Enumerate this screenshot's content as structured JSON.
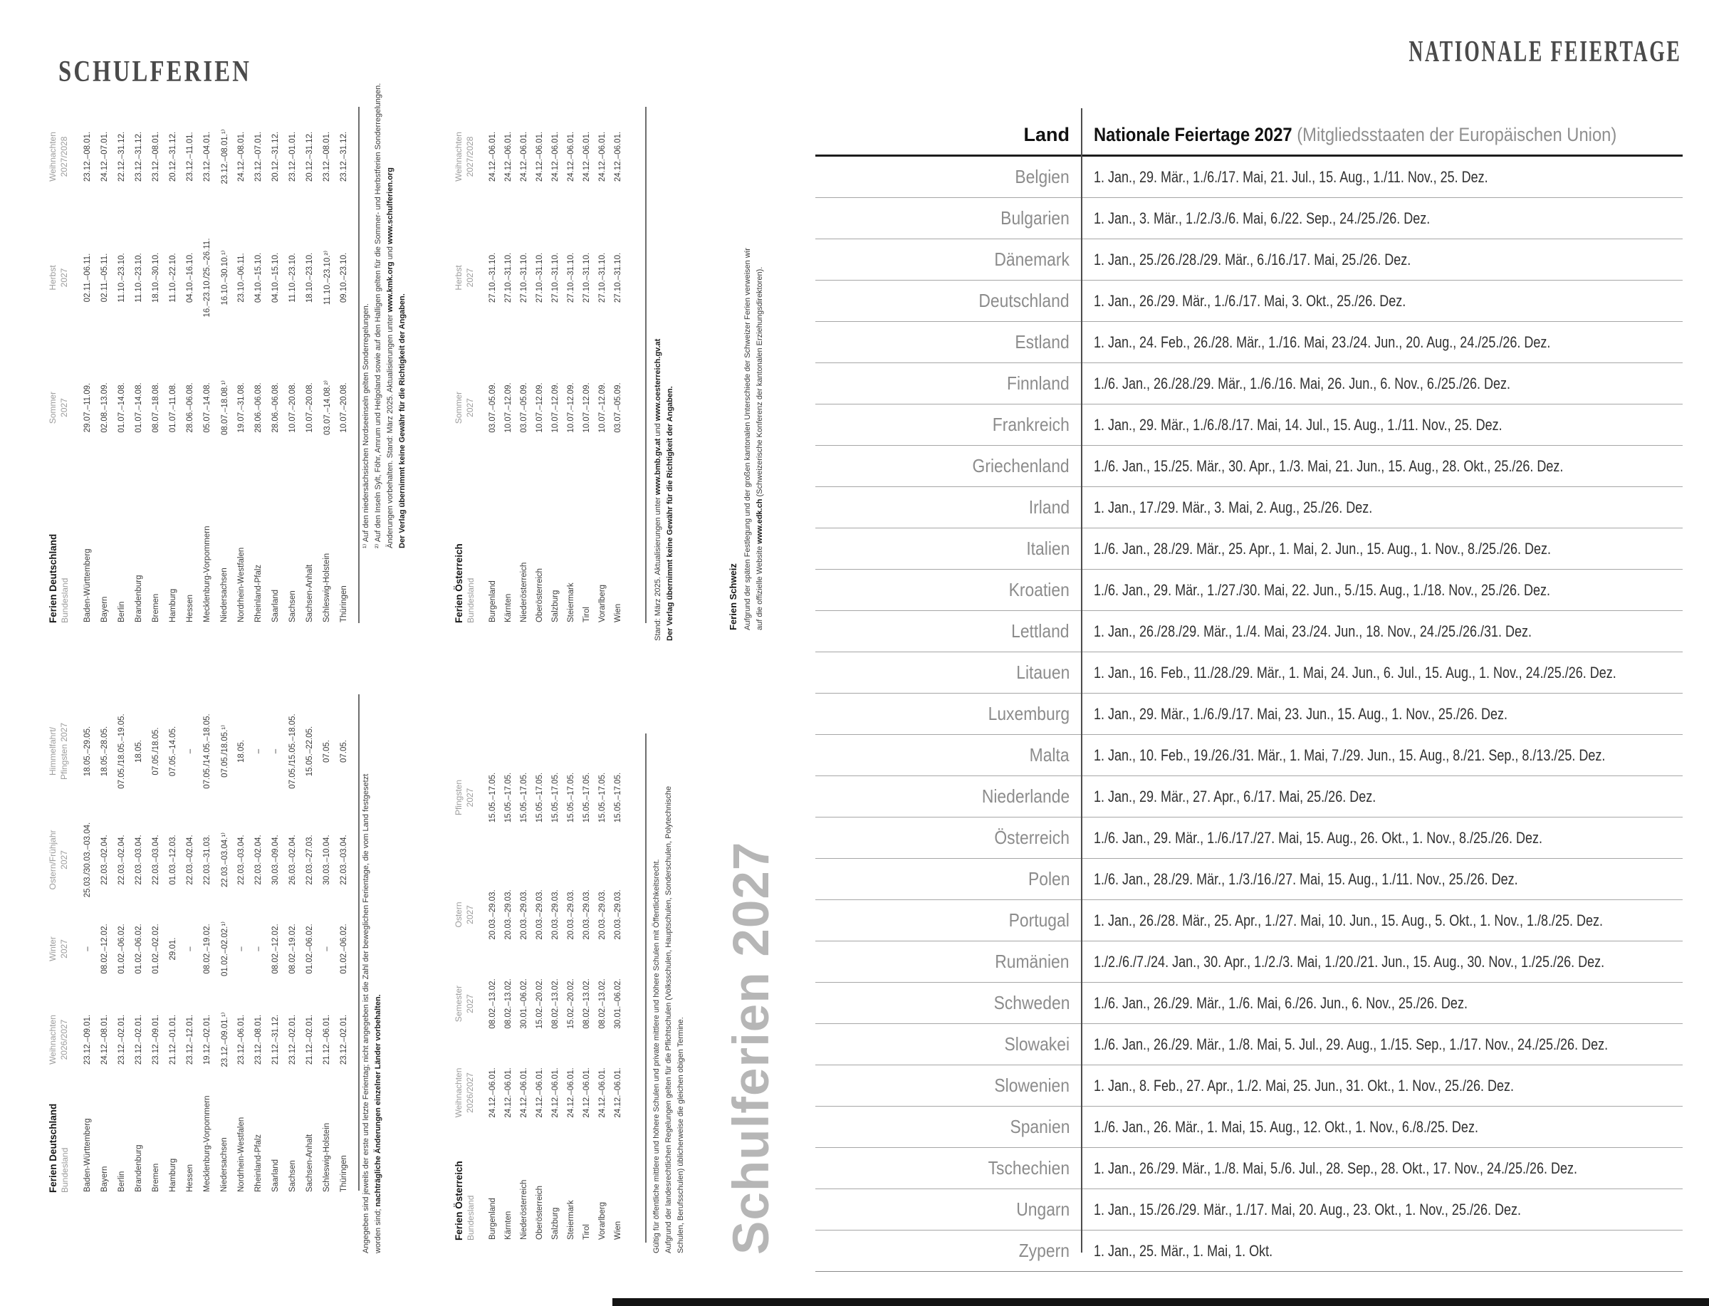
{
  "left_page": {
    "title": "SCHULFERIEN",
    "watermark": "Schulferien 2027",
    "tables": {
      "de_top": {
        "title": "Ferien Deutschland",
        "subtitle": "Bundesland",
        "columns": [
          [
            "Sommer",
            "2027"
          ],
          [
            "Herbst",
            "2027"
          ],
          [
            "Weihnachten",
            "2027/2028"
          ]
        ],
        "rows": [
          [
            "Baden-Württemberg",
            "29.07.–11.09.",
            "02.11.–06.11.",
            "23.12.–08.01."
          ],
          [
            "Bayern",
            "02.08.–13.09.",
            "02.11.–05.11.",
            "24.12.–07.01."
          ],
          [
            "Berlin",
            "01.07.–14.08.",
            "11.10.–23.10.",
            "22.12.–31.12."
          ],
          [
            "Brandenburg",
            "01.07.–14.08.",
            "11.10.–23.10.",
            "23.12.–31.12."
          ],
          [
            "Bremen",
            "08.07.–18.08.",
            "18.10.–30.10.",
            "23.12.–08.01."
          ],
          [
            "Hamburg",
            "01.07.–11.08.",
            "11.10.–22.10.",
            "20.12.–31.12."
          ],
          [
            "Hessen",
            "28.06.–06.08.",
            "04.10.–16.10.",
            "23.12.–11.01."
          ],
          [
            "Mecklenburg-Vorpommern",
            "05.07.–14.08.",
            "16.–23.10./25.–26.11.",
            "23.12.–04.01."
          ],
          [
            "Niedersachsen",
            "08.07.–18.08.¹⁾",
            "16.10.–30.10.¹⁾",
            "23.12.–08.01.¹⁾"
          ],
          [
            "Nordrhein-Westfalen",
            "19.07.–31.08.",
            "23.10.–06.11.",
            "24.12.–08.01."
          ],
          [
            "Rheinland-Pfalz",
            "28.06.–06.08.",
            "04.10.–15.10.",
            "23.12.–07.01."
          ],
          [
            "Saarland",
            "28.06.–06.08.",
            "04.10.–15.10.",
            "20.12.–31.12."
          ],
          [
            "Sachsen",
            "10.07.–20.08.",
            "11.10.–23.10.",
            "23.12.–01.01."
          ],
          [
            "Sachsen-Anhalt",
            "10.07.–20.08.",
            "18.10.–23.10.",
            "20.12.–31.12."
          ],
          [
            "Schleswig-Holstein",
            "03.07.–14.08.²⁾",
            "11.10.–23.10.²⁾",
            "23.12.–08.01."
          ],
          [
            "Thüringen",
            "10.07.–20.08.",
            "09.10.–23.10.",
            "23.12.–31.12."
          ]
        ]
      },
      "de_bottom": {
        "title": "Ferien Deutschland",
        "subtitle": "Bundesland",
        "columns": [
          [
            "Weihnachten",
            "2026/2027"
          ],
          [
            "Winter",
            "2027"
          ],
          [
            "Ostern/Frühjahr",
            "2027"
          ],
          [
            "Himmelfahrt/",
            "Pfingsten 2027"
          ]
        ],
        "rows": [
          [
            "Baden-Württemberg",
            "23.12.–09.01.",
            "–",
            "25.03./30.03.–03.04.",
            "18.05.–29.05."
          ],
          [
            "Bayern",
            "24.12.–08.01.",
            "08.02.–12.02.",
            "22.03.–02.04.",
            "18.05.–28.05."
          ],
          [
            "Berlin",
            "23.12.–02.01.",
            "01.02.–06.02.",
            "22.03.–02.04.",
            "07.05./18.05.–19.05."
          ],
          [
            "Brandenburg",
            "23.12.–02.01.",
            "01.02.–06.02.",
            "22.03.–03.04.",
            "18.05."
          ],
          [
            "Bremen",
            "23.12.–09.01.",
            "01.02.–02.02.",
            "22.03.–03.04.",
            "07.05./18.05."
          ],
          [
            "Hamburg",
            "21.12.–01.01.",
            "29.01.",
            "01.03.–12.03.",
            "07.05.–14.05."
          ],
          [
            "Hessen",
            "23.12.–12.01.",
            "–",
            "22.03.–02.04.",
            "–"
          ],
          [
            "Mecklenburg-Vorpommern",
            "19.12.–02.01.",
            "08.02.–19.02.",
            "22.03.–31.03.",
            "07.05./14.05.–18.05."
          ],
          [
            "Niedersachsen",
            "23.12.–09.01.¹⁾",
            "01.02.–02.02.¹⁾",
            "22.03.–03.04.¹⁾",
            "07.05./18.05.¹⁾"
          ],
          [
            "Nordrhein-Westfalen",
            "23.12.–06.01.",
            "–",
            "22.03.–03.04.",
            "18.05."
          ],
          [
            "Rheinland-Pfalz",
            "23.12.–08.01.",
            "–",
            "22.03.–02.04.",
            "–"
          ],
          [
            "Saarland",
            "21.12.–31.12.",
            "08.02.–12.02.",
            "30.03.–09.04.",
            "–"
          ],
          [
            "Sachsen",
            "23.12.–02.01.",
            "08.02.–19.02.",
            "26.03.–02.04.",
            "07.05./15.05.–18.05."
          ],
          [
            "Sachsen-Anhalt",
            "21.12.–02.01.",
            "01.02.–06.02.",
            "22.03.–27.03.",
            "15.05.–22.05."
          ],
          [
            "Schleswig-Holstein",
            "21.12.–06.01.",
            "–",
            "30.03.–10.04.",
            "07.05."
          ],
          [
            "Thüringen",
            "23.12.–02.01.",
            "01.02.–06.02.",
            "22.03.–03.04.",
            "07.05."
          ]
        ]
      },
      "at_top": {
        "title": "Ferien Österreich",
        "subtitle": "Bundesland",
        "columns": [
          [
            "Sommer",
            "2027"
          ],
          [
            "Herbst",
            "2027"
          ],
          [
            "Weihnachten",
            "2027/2028"
          ]
        ],
        "rows": [
          [
            "Burgenland",
            "03.07.–05.09.",
            "27.10.–31.10.",
            "24.12.–06.01."
          ],
          [
            "Kärnten",
            "10.07.–12.09.",
            "27.10.–31.10.",
            "24.12.–06.01."
          ],
          [
            "Niederösterreich",
            "03.07.–05.09.",
            "27.10.–31.10.",
            "24.12.–06.01."
          ],
          [
            "Oberösterreich",
            "10.07.–12.09.",
            "27.10.–31.10.",
            "24.12.–06.01."
          ],
          [
            "Salzburg",
            "10.07.–12.09.",
            "27.10.–31.10.",
            "24.12.–06.01."
          ],
          [
            "Steiermark",
            "10.07.–12.09.",
            "27.10.–31.10.",
            "24.12.–06.01."
          ],
          [
            "Tirol",
            "10.07.–12.09.",
            "27.10.–31.10.",
            "24.12.–06.01."
          ],
          [
            "Vorarlberg",
            "10.07.–12.09.",
            "27.10.–31.10.",
            "24.12.–06.01."
          ],
          [
            "Wien",
            "03.07.–05.09.",
            "27.10.–31.10.",
            "24.12.–06.01."
          ]
        ]
      },
      "at_bottom": {
        "title": "Ferien Österreich",
        "subtitle": "Bundesland",
        "columns": [
          [
            "Weihnachten",
            "2026/2027"
          ],
          [
            "Semester",
            "2027"
          ],
          [
            "Ostern",
            "2027"
          ],
          [
            "Pfingsten",
            "2027"
          ]
        ],
        "rows": [
          [
            "Burgenland",
            "24.12.–06.01.",
            "08.02.–13.02.",
            "20.03.–29.03.",
            "15.05.–17.05."
          ],
          [
            "Kärnten",
            "24.12.–06.01.",
            "08.02.–13.02.",
            "20.03.–29.03.",
            "15.05.–17.05."
          ],
          [
            "Niederösterreich",
            "24.12.–06.01.",
            "30.01.–06.02.",
            "20.03.–29.03.",
            "15.05.–17.05."
          ],
          [
            "Oberösterreich",
            "24.12.–06.01.",
            "15.02.–20.02.",
            "20.03.–29.03.",
            "15.05.–17.05."
          ],
          [
            "Salzburg",
            "24.12.–06.01.",
            "08.02.–13.02.",
            "20.03.–29.03.",
            "15.05.–17.05."
          ],
          [
            "Steiermark",
            "24.12.–06.01.",
            "15.02.–20.02.",
            "20.03.–29.03.",
            "15.05.–17.05."
          ],
          [
            "Tirol",
            "24.12.–06.01.",
            "08.02.–13.02.",
            "20.03.–29.03.",
            "15.05.–17.05."
          ],
          [
            "Vorarlberg",
            "24.12.–06.01.",
            "08.02.–13.02.",
            "20.03.–29.03.",
            "15.05.–17.05."
          ],
          [
            "Wien",
            "24.12.–06.01.",
            "30.01.–06.02.",
            "20.03.–29.03.",
            "15.05.–17.05."
          ]
        ]
      }
    },
    "footnotes": {
      "de_top": [
        [
          {
            "t": "¹⁾ Auf den niedersächsischen Nordseeinseln gelten Sonderregelungen.",
            "b": 0
          }
        ],
        [
          {
            "t": "²⁾ Auf den Inseln Sylt, Föhr, Amrum und Helgoland sowie auf den Halligen gelten für die Sommer- und Herbstferien Sonderregelungen.",
            "b": 0
          }
        ],
        [
          {
            "t": "Änderungen vorbehalten. Stand: März 2025. Aktualisierungen unter ",
            "b": 0
          },
          {
            "t": "www.kmk.org",
            "b": 1
          },
          {
            "t": " und ",
            "b": 0
          },
          {
            "t": "www.schulferien.org",
            "b": 1
          }
        ],
        [
          {
            "t": "Der Verlag übernimmt keine Gewähr für die Richtigkeit der Angaben.",
            "b": 1
          }
        ]
      ],
      "de_bottom": [
        [
          {
            "t": "Angegeben sind jeweils der erste und letzte Ferientag; nicht angegeben ist die Zahl der beweglichen Ferientage, die vom Land festgesetzt",
            "b": 0
          }
        ],
        [
          {
            "t": "worden sind; ",
            "b": 0
          },
          {
            "t": "nachträgliche Änderungen einzelner Länder vorbehalten.",
            "b": 1
          }
        ]
      ],
      "at_top": [
        [
          {
            "t": "Stand: März 2025. Aktualisierungen unter ",
            "b": 0
          },
          {
            "t": "www.bmb.gv.at",
            "b": 1
          },
          {
            "t": " und ",
            "b": 0
          },
          {
            "t": "www.oesterreich.gv.at",
            "b": 1
          }
        ],
        [
          {
            "t": "Der Verlag übernimmt keine Gewähr für die Richtigkeit der Angaben.",
            "b": 1
          }
        ]
      ],
      "at_bottom": [
        [
          {
            "t": "Gültig für öffentliche mittlere und höhere Schulen und private mittlere und höhere Schulen mit Öffentlichkeitsrecht.",
            "b": 0
          }
        ],
        [
          {
            "t": "Aufgrund der landesrechtlichen Regelungen gelten für die Pflichtschulen (Volksschulen, Hauptschulen, Sonderschulen, Polytechnische",
            "b": 0
          }
        ],
        [
          {
            "t": "Schulen, Berufsschulen) üblicherweise die gleichen obigen Termine.",
            "b": 0
          }
        ]
      ]
    },
    "schweiz": {
      "title": "Ferien Schweiz",
      "lines": [
        [
          {
            "t": "Aufgrund der späten Festlegung und der großen kantonalen Unterschiede der Schweizer Ferien verweisen wir",
            "b": 0
          }
        ],
        [
          {
            "t": "auf die offizielle Website ",
            "b": 0
          },
          {
            "t": "www.edk.ch",
            "b": 1
          },
          {
            "t": " (Schweizerische Konferenz der kantonalen Erziehungsdirektoren).",
            "b": 0
          }
        ]
      ]
    }
  },
  "right_page": {
    "title": "NATIONALE FEIERTAGE",
    "table": {
      "col1_header": "Land",
      "col2_header_bold": "Nationale Feiertage 2027",
      "col2_header_gray": " (Mitgliedsstaaten der Europäischen Union)",
      "rows": [
        {
          "land": "Belgien",
          "dates": "1. Jan., 29. Mär., 1./6./17. Mai, 21. Jul., 15. Aug., 1./11. Nov., 25. Dez."
        },
        {
          "land": "Bulgarien",
          "dates": "1. Jan., 3. Mär., 1./2./3./6. Mai, 6./22. Sep., 24./25./26. Dez."
        },
        {
          "land": "Dänemark",
          "dates": "1. Jan., 25./26./28./29. Mär., 6./16./17. Mai, 25./26. Dez."
        },
        {
          "land": "Deutschland",
          "dates": "1. Jan., 26./29. Mär., 1./6./17. Mai, 3. Okt., 25./26. Dez."
        },
        {
          "land": "Estland",
          "dates": "1. Jan., 24. Feb., 26./28. Mär., 1./16. Mai, 23./24. Jun., 20. Aug., 24./25./26. Dez."
        },
        {
          "land": "Finnland",
          "dates": "1./6. Jan., 26./28./29. Mär., 1./6./16. Mai, 26. Jun., 6. Nov., 6./25./26. Dez."
        },
        {
          "land": "Frankreich",
          "dates": "1. Jan., 29. Mär., 1./6./8./17. Mai, 14. Jul., 15. Aug., 1./11. Nov., 25. Dez."
        },
        {
          "land": "Griechenland",
          "dates": "1./6. Jan., 15./25. Mär., 30. Apr., 1./3. Mai, 21. Jun., 15. Aug., 28. Okt., 25./26. Dez."
        },
        {
          "land": "Irland",
          "dates": "1. Jan., 17./29. Mär., 3. Mai, 2. Aug., 25./26. Dez."
        },
        {
          "land": "Italien",
          "dates": "1./6. Jan., 28./29. Mär., 25. Apr., 1. Mai, 2. Jun., 15. Aug., 1. Nov., 8./25./26. Dez."
        },
        {
          "land": "Kroatien",
          "dates": "1./6. Jan., 29. Mär., 1./27./30. Mai, 22. Jun., 5./15. Aug., 1./18. Nov., 25./26. Dez."
        },
        {
          "land": "Lettland",
          "dates": "1. Jan., 26./28./29. Mär., 1./4. Mai, 23./24. Jun., 18. Nov., 24./25./26./31. Dez."
        },
        {
          "land": "Litauen",
          "dates": "1. Jan., 16. Feb., 11./28./29. Mär., 1. Mai, 24. Jun., 6. Jul., 15. Aug., 1. Nov., 24./25./26. Dez."
        },
        {
          "land": "Luxemburg",
          "dates": "1. Jan., 29. Mär., 1./6./9./17. Mai, 23. Jun., 15. Aug., 1. Nov., 25./26. Dez."
        },
        {
          "land": "Malta",
          "dates": "1. Jan., 10. Feb., 19./26./31. Mär., 1. Mai, 7./29. Jun., 15. Aug., 8./21. Sep., 8./13./25. Dez."
        },
        {
          "land": "Niederlande",
          "dates": "1. Jan., 29. Mär., 27. Apr., 6./17. Mai, 25./26. Dez."
        },
        {
          "land": "Österreich",
          "dates": "1./6. Jan., 29. Mär., 1./6./17./27. Mai, 15. Aug., 26. Okt., 1. Nov., 8./25./26. Dez."
        },
        {
          "land": "Polen",
          "dates": "1./6. Jan., 28./29. Mär., 1./3./16./27. Mai, 15. Aug., 1./11. Nov., 25./26. Dez."
        },
        {
          "land": "Portugal",
          "dates": "1. Jan., 26./28. Mär., 25. Apr., 1./27. Mai, 10. Jun., 15. Aug., 5. Okt., 1. Nov., 1./8./25. Dez."
        },
        {
          "land": "Rumänien",
          "dates": "1./2./6./7./24. Jan., 30. Apr., 1./2./3. Mai, 1./20./21. Jun., 15. Aug., 30. Nov., 1./25./26. Dez."
        },
        {
          "land": "Schweden",
          "dates": "1./6. Jan., 26./29. Mär., 1./6. Mai, 6./26. Jun., 6. Nov., 25./26. Dez."
        },
        {
          "land": "Slowakei",
          "dates": "1./6. Jan., 26./29. Mär., 1./8. Mai, 5. Jul., 29. Aug., 1./15. Sep., 1./17. Nov., 24./25./26. Dez."
        },
        {
          "land": "Slowenien",
          "dates": "1. Jan., 8. Feb., 27. Apr., 1./2. Mai, 25. Jun., 31. Okt., 1. Nov., 25./26. Dez."
        },
        {
          "land": "Spanien",
          "dates": "1./6. Jan., 26. Mär., 1. Mai, 15. Aug., 12. Okt., 1. Nov., 6./8./25. Dez."
        },
        {
          "land": "Tschechien",
          "dates": "1. Jan., 26./29. Mär., 1./8. Mai, 5./6. Jul., 28. Sep., 28. Okt., 17. Nov., 24./25./26. Dez."
        },
        {
          "land": "Ungarn",
          "dates": "1. Jan., 15./26./29. Mär., 1./17. Mai, 20. Aug., 23. Okt., 1. Nov., 25./26. Dez."
        },
        {
          "land": "Zypern",
          "dates": "1. Jan., 25. Mär., 1. Mai, 1. Okt."
        }
      ]
    }
  }
}
